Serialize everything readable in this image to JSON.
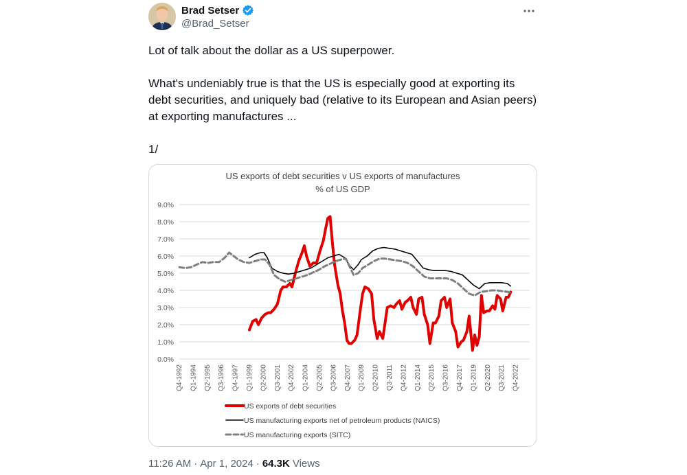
{
  "author": {
    "display_name": "Brad Setser",
    "handle": "@Brad_Setser",
    "verified": true
  },
  "tweet": {
    "paragraphs": [
      "Lot of talk about the dollar as a US superpower.",
      "What's undeniably true is that the US is especially good at exporting its debt securities, and uniquely bad (relative to its European and Asian peers) at exporting manufactures ...",
      "1/"
    ],
    "time": "11:26 AM",
    "date": "Apr 1, 2024",
    "views_count": "64.3K",
    "views_label": "Views"
  },
  "icons": {
    "verified": "verified-badge-icon",
    "more": "more-options-icon"
  },
  "colors": {
    "accent": "#1d9bf0",
    "series_debt": "#e00000",
    "series_naics": "#000000",
    "series_sitc": "#7f7f7f"
  },
  "chart_data": {
    "type": "line",
    "title": "US exports of debt securities v US exports of manufactures",
    "subtitle": "% of US GDP",
    "ylim": [
      0,
      9
    ],
    "y_ticks": [
      "9.0%",
      "8.0%",
      "7.0%",
      "6.0%",
      "5.0%",
      "4.0%",
      "3.0%",
      "2.0%",
      "1.0%",
      "0.0%"
    ],
    "x_ticks": [
      "Q4-1992",
      "Q1-1994",
      "Q2-1995",
      "Q3-1996",
      "Q4-1997",
      "Q1-1999",
      "Q2-2000",
      "Q3-2001",
      "Q4-2002",
      "Q1-2004",
      "Q2-2005",
      "Q3-2006",
      "Q4-2007",
      "Q1-2009",
      "Q2-2010",
      "Q3-2011",
      "Q4-2012",
      "Q1-2014",
      "Q2-2015",
      "Q3-2016",
      "Q4-2017",
      "Q1-2019",
      "Q2-2020",
      "Q3-2021",
      "Q4-2022"
    ],
    "x_range": [
      1992.75,
      2024.0
    ],
    "grid": true,
    "legend_position": "bottom",
    "series": [
      {
        "name": "US exports of debt securities",
        "points": [
          [
            1999.0,
            1.7
          ],
          [
            1999.3,
            2.2
          ],
          [
            1999.6,
            2.3
          ],
          [
            1999.8,
            2.0
          ],
          [
            2000.1,
            2.4
          ],
          [
            2000.4,
            2.6
          ],
          [
            2000.7,
            2.7
          ],
          [
            2000.9,
            2.7
          ],
          [
            2001.2,
            2.9
          ],
          [
            2001.5,
            3.2
          ],
          [
            2001.8,
            4.0
          ],
          [
            2002.0,
            4.2
          ],
          [
            2002.3,
            4.2
          ],
          [
            2002.6,
            4.4
          ],
          [
            2002.8,
            4.2
          ],
          [
            2003.1,
            5.0
          ],
          [
            2003.4,
            5.7
          ],
          [
            2003.7,
            6.2
          ],
          [
            2003.9,
            6.6
          ],
          [
            2004.1,
            6.0
          ],
          [
            2004.4,
            5.4
          ],
          [
            2004.7,
            5.6
          ],
          [
            2005.0,
            5.6
          ],
          [
            2005.3,
            6.3
          ],
          [
            2005.6,
            6.9
          ],
          [
            2005.8,
            7.6
          ],
          [
            2006.0,
            8.2
          ],
          [
            2006.2,
            8.3
          ],
          [
            2006.4,
            6.8
          ],
          [
            2006.6,
            5.5
          ],
          [
            2006.9,
            4.3
          ],
          [
            2007.1,
            3.8
          ],
          [
            2007.3,
            2.8
          ],
          [
            2007.5,
            2.1
          ],
          [
            2007.7,
            1.1
          ],
          [
            2007.9,
            0.9
          ],
          [
            2008.1,
            0.9
          ],
          [
            2008.4,
            1.1
          ],
          [
            2008.6,
            1.4
          ],
          [
            2008.9,
            2.9
          ],
          [
            2009.1,
            3.8
          ],
          [
            2009.3,
            4.2
          ],
          [
            2009.6,
            4.1
          ],
          [
            2009.9,
            3.8
          ],
          [
            2010.1,
            2.3
          ],
          [
            2010.4,
            1.2
          ],
          [
            2010.6,
            1.6
          ],
          [
            2010.9,
            1.2
          ],
          [
            2011.1,
            2.1
          ],
          [
            2011.3,
            3.0
          ],
          [
            2011.6,
            3.1
          ],
          [
            2011.9,
            3.0
          ],
          [
            2012.1,
            3.2
          ],
          [
            2012.4,
            3.4
          ],
          [
            2012.6,
            2.9
          ],
          [
            2012.9,
            3.3
          ],
          [
            2013.1,
            3.4
          ],
          [
            2013.4,
            3.6
          ],
          [
            2013.6,
            3.0
          ],
          [
            2013.9,
            2.6
          ],
          [
            2014.1,
            3.5
          ],
          [
            2014.4,
            3.6
          ],
          [
            2014.6,
            2.6
          ],
          [
            2014.9,
            2.0
          ],
          [
            2015.1,
            0.9
          ],
          [
            2015.4,
            2.1
          ],
          [
            2015.6,
            2.1
          ],
          [
            2015.9,
            2.5
          ],
          [
            2016.1,
            3.4
          ],
          [
            2016.4,
            3.6
          ],
          [
            2016.6,
            3.0
          ],
          [
            2016.9,
            3.5
          ],
          [
            2017.1,
            2.1
          ],
          [
            2017.4,
            1.6
          ],
          [
            2017.6,
            0.7
          ],
          [
            2017.9,
            1.0
          ],
          [
            2018.1,
            1.1
          ],
          [
            2018.4,
            1.6
          ],
          [
            2018.6,
            2.5
          ],
          [
            2018.9,
            0.5
          ],
          [
            2019.1,
            1.4
          ],
          [
            2019.3,
            0.8
          ],
          [
            2019.5,
            1.3
          ],
          [
            2019.7,
            3.7
          ],
          [
            2019.9,
            2.7
          ],
          [
            2020.2,
            2.8
          ],
          [
            2020.4,
            2.8
          ],
          [
            2020.7,
            3.1
          ],
          [
            2020.9,
            2.9
          ],
          [
            2021.1,
            3.7
          ],
          [
            2021.4,
            3.5
          ],
          [
            2021.6,
            2.8
          ],
          [
            2021.9,
            3.6
          ],
          [
            2022.1,
            3.6
          ],
          [
            2022.3,
            3.9
          ]
        ]
      },
      {
        "name": "US manufacturing exports net of petroleum products (NAICS)",
        "points": [
          [
            1999.0,
            5.9
          ],
          [
            1999.5,
            6.1
          ],
          [
            2000.0,
            6.2
          ],
          [
            2000.3,
            6.2
          ],
          [
            2000.6,
            5.9
          ],
          [
            2001.0,
            5.3
          ],
          [
            2001.5,
            5.1
          ],
          [
            2002.0,
            5.0
          ],
          [
            2002.5,
            4.95
          ],
          [
            2003.0,
            5.0
          ],
          [
            2003.5,
            5.1
          ],
          [
            2004.0,
            5.2
          ],
          [
            2004.5,
            5.3
          ],
          [
            2005.0,
            5.5
          ],
          [
            2005.5,
            5.7
          ],
          [
            2006.0,
            5.9
          ],
          [
            2006.5,
            6.0
          ],
          [
            2007.0,
            6.1
          ],
          [
            2007.5,
            5.9
          ],
          [
            2008.0,
            5.4
          ],
          [
            2008.3,
            5.2
          ],
          [
            2008.7,
            5.5
          ],
          [
            2009.0,
            5.8
          ],
          [
            2009.5,
            6.0
          ],
          [
            2010.0,
            6.3
          ],
          [
            2010.5,
            6.45
          ],
          [
            2011.0,
            6.5
          ],
          [
            2011.5,
            6.45
          ],
          [
            2012.0,
            6.4
          ],
          [
            2012.5,
            6.3
          ],
          [
            2013.0,
            6.2
          ],
          [
            2013.5,
            6.1
          ],
          [
            2014.0,
            5.7
          ],
          [
            2014.5,
            5.3
          ],
          [
            2015.0,
            5.2
          ],
          [
            2015.5,
            5.15
          ],
          [
            2016.0,
            5.15
          ],
          [
            2016.5,
            5.15
          ],
          [
            2017.0,
            5.1
          ],
          [
            2017.5,
            5.0
          ],
          [
            2018.0,
            4.9
          ],
          [
            2018.5,
            4.6
          ],
          [
            2019.0,
            4.3
          ],
          [
            2019.5,
            4.1
          ],
          [
            2020.0,
            4.4
          ],
          [
            2020.5,
            4.45
          ],
          [
            2021.0,
            4.45
          ],
          [
            2021.5,
            4.45
          ],
          [
            2022.0,
            4.4
          ],
          [
            2022.3,
            4.25
          ]
        ]
      },
      {
        "name": "US manufacturing exports (SITC)",
        "points": [
          [
            1992.75,
            5.35
          ],
          [
            1993.3,
            5.3
          ],
          [
            1993.8,
            5.35
          ],
          [
            1994.3,
            5.5
          ],
          [
            1994.8,
            5.65
          ],
          [
            1995.3,
            5.6
          ],
          [
            1995.8,
            5.65
          ],
          [
            1996.3,
            5.65
          ],
          [
            1996.8,
            5.9
          ],
          [
            1997.2,
            6.2
          ],
          [
            1997.6,
            6.0
          ],
          [
            1998.0,
            5.8
          ],
          [
            1998.5,
            5.65
          ],
          [
            1999.0,
            5.6
          ],
          [
            1999.5,
            5.7
          ],
          [
            2000.0,
            5.8
          ],
          [
            2000.4,
            5.8
          ],
          [
            2000.8,
            5.5
          ],
          [
            2001.2,
            4.9
          ],
          [
            2001.7,
            4.65
          ],
          [
            2002.2,
            4.5
          ],
          [
            2002.7,
            4.6
          ],
          [
            2003.2,
            4.7
          ],
          [
            2003.7,
            4.8
          ],
          [
            2004.2,
            4.9
          ],
          [
            2004.7,
            5.05
          ],
          [
            2005.2,
            5.2
          ],
          [
            2005.7,
            5.4
          ],
          [
            2006.2,
            5.55
          ],
          [
            2006.7,
            5.7
          ],
          [
            2007.2,
            5.8
          ],
          [
            2007.6,
            5.85
          ],
          [
            2008.0,
            5.3
          ],
          [
            2008.3,
            4.9
          ],
          [
            2008.7,
            5.0
          ],
          [
            2009.1,
            5.3
          ],
          [
            2009.6,
            5.5
          ],
          [
            2010.1,
            5.7
          ],
          [
            2010.6,
            5.85
          ],
          [
            2011.1,
            5.85
          ],
          [
            2011.6,
            5.8
          ],
          [
            2012.1,
            5.75
          ],
          [
            2012.6,
            5.7
          ],
          [
            2013.1,
            5.6
          ],
          [
            2013.6,
            5.4
          ],
          [
            2014.1,
            5.1
          ],
          [
            2014.6,
            4.8
          ],
          [
            2015.1,
            4.7
          ],
          [
            2015.6,
            4.7
          ],
          [
            2016.1,
            4.7
          ],
          [
            2016.6,
            4.7
          ],
          [
            2017.1,
            4.6
          ],
          [
            2017.6,
            4.4
          ],
          [
            2018.1,
            4.1
          ],
          [
            2018.6,
            3.8
          ],
          [
            2019.1,
            3.7
          ],
          [
            2019.6,
            3.9
          ],
          [
            2020.1,
            3.95
          ],
          [
            2020.6,
            4.0
          ],
          [
            2021.1,
            4.0
          ],
          [
            2021.6,
            3.95
          ],
          [
            2022.1,
            3.9
          ],
          [
            2022.3,
            3.85
          ]
        ]
      }
    ]
  }
}
